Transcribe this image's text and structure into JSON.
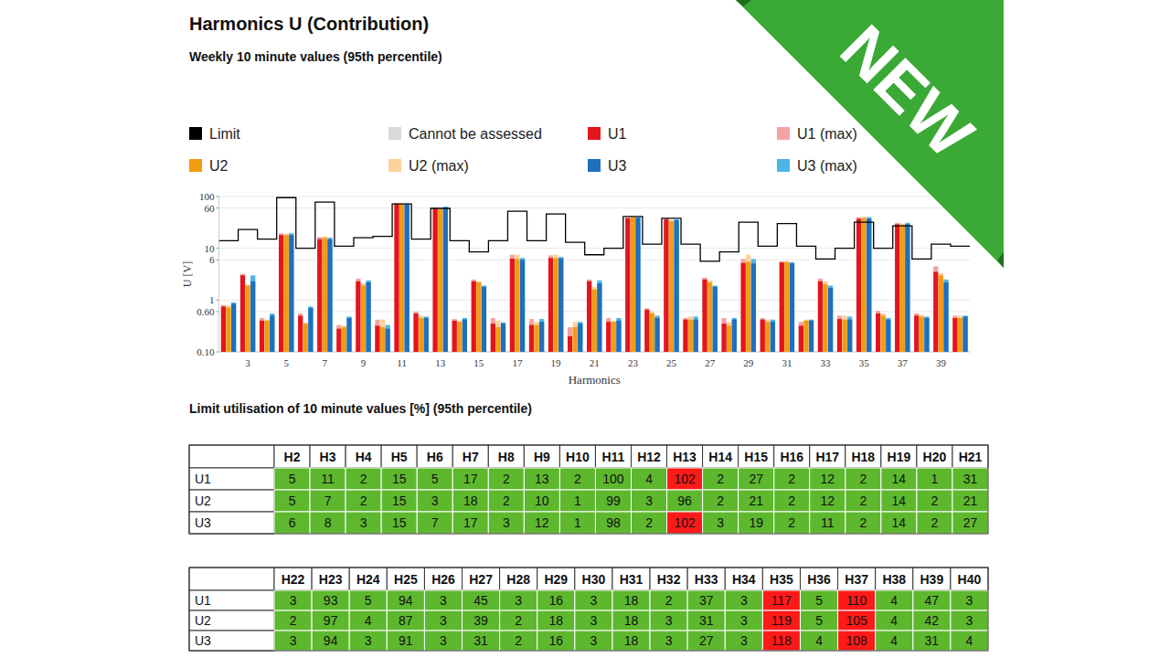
{
  "chart_data": {
    "type": "bar",
    "title": "Harmonics U (Contribution)",
    "subtitle": "Weekly 10 minute values (95th percentile)",
    "x_label": "Harmonics",
    "y_label": "U [V]",
    "categories": [
      null,
      "3",
      null,
      "5",
      null,
      "7",
      null,
      "9",
      null,
      "11",
      null,
      "13",
      null,
      "15",
      null,
      "17",
      null,
      "19",
      null,
      "21",
      null,
      "23",
      null,
      "25",
      null,
      "27",
      null,
      "29",
      null,
      "31",
      null,
      "33",
      null,
      "35",
      null,
      "37",
      null,
      "39",
      null
    ],
    "log": "y",
    "grid": true,
    "legend": "top",
    "ylim": [
      0.1,
      100
    ],
    "yticks": [
      {
        "value": 0.1,
        "label": "0.10"
      },
      {
        "value": 0.6,
        "label": "0.60"
      },
      1,
      6,
      10,
      60,
      100
    ],
    "series": [
      {
        "name": "Limit",
        "type": "line",
        "line_style": "step",
        "color": "#000000",
        "values": [
          14,
          23,
          15,
          95,
          10,
          78,
          11,
          16,
          17,
          72,
          15,
          59,
          14,
          8.5,
          14,
          52,
          14,
          46,
          13,
          7.5,
          10,
          41,
          12,
          38,
          12,
          5.6,
          8.5,
          32,
          11,
          30,
          11,
          6.2,
          10,
          32,
          10,
          27,
          6.2,
          12,
          11
        ]
      },
      {
        "name": "Cannot be assessed",
        "type": "bar",
        "color": "#d9d9d9",
        "values": [
          null,
          null,
          null,
          null,
          null,
          null,
          null,
          null,
          null,
          null,
          null,
          null,
          null,
          null,
          null,
          null,
          null,
          null,
          null,
          null,
          null,
          null,
          null,
          null,
          null,
          null,
          null,
          null,
          null,
          null,
          null,
          null,
          null,
          null,
          null,
          null,
          null,
          null,
          null
        ]
      },
      {
        "name": "U1",
        "type": "bar",
        "color": "#e3151c",
        "values": [
          0.75,
          3.0,
          0.4,
          18,
          0.5,
          15,
          0.28,
          2.3,
          0.32,
          72,
          0.55,
          58,
          0.4,
          2.3,
          0.35,
          6.3,
          0.33,
          6.5,
          0.2,
          2.3,
          0.38,
          38,
          0.65,
          36,
          0.42,
          2.5,
          0.35,
          5.2,
          0.42,
          5.3,
          0.32,
          2.3,
          0.43,
          37,
          0.55,
          29,
          0.5,
          3.5,
          0.45
        ]
      },
      {
        "name": "U1 (max)",
        "type": "bar",
        "color": "#f4a3a3",
        "values": [
          0.8,
          3.2,
          0.45,
          19.5,
          0.55,
          16.5,
          0.33,
          2.6,
          0.42,
          74,
          0.6,
          62,
          0.43,
          2.5,
          0.45,
          7.5,
          0.43,
          7.3,
          0.3,
          2.5,
          0.45,
          40,
          0.7,
          38,
          0.45,
          2.7,
          0.45,
          6.2,
          0.45,
          5.6,
          0.38,
          2.6,
          0.5,
          40,
          0.62,
          31,
          0.55,
          4.5,
          0.5
        ]
      },
      {
        "name": "U2",
        "type": "bar",
        "color": "#f39c12",
        "values": [
          0.72,
          1.9,
          0.4,
          18,
          0.35,
          16,
          0.3,
          1.9,
          0.3,
          71,
          0.45,
          56,
          0.38,
          2.2,
          0.3,
          6.2,
          0.33,
          6.4,
          0.3,
          1.6,
          0.38,
          40,
          0.55,
          33,
          0.42,
          2.2,
          0.32,
          5.5,
          0.38,
          5.4,
          0.4,
          2.0,
          0.42,
          38,
          0.5,
          28,
          0.48,
          3.0,
          0.45
        ]
      },
      {
        "name": "U2 (max)",
        "type": "bar",
        "color": "#fcd29a",
        "values": [
          0.8,
          2.0,
          0.42,
          19,
          0.37,
          17,
          0.32,
          2.1,
          0.42,
          74,
          0.5,
          60,
          0.4,
          2.3,
          0.4,
          7.5,
          0.38,
          7.5,
          0.38,
          1.8,
          0.4,
          41,
          0.6,
          35,
          0.48,
          2.4,
          0.38,
          7.5,
          0.42,
          5.7,
          0.42,
          2.3,
          0.5,
          41,
          0.55,
          30,
          0.52,
          3.3,
          0.5
        ]
      },
      {
        "name": "U3",
        "type": "bar",
        "color": "#1f6fbf",
        "values": [
          0.85,
          2.3,
          0.5,
          18,
          0.7,
          15,
          0.45,
          2.2,
          0.28,
          70,
          0.45,
          60,
          0.42,
          1.8,
          0.35,
          6.0,
          0.38,
          6.4,
          0.35,
          2.1,
          0.4,
          39,
          0.45,
          35,
          0.42,
          1.8,
          0.42,
          5.1,
          0.38,
          5.1,
          0.4,
          1.7,
          0.42,
          37,
          0.42,
          29,
          0.45,
          2.2,
          0.48
        ]
      },
      {
        "name": "U3 (max)",
        "type": "bar",
        "color": "#4cb5e6",
        "values": [
          0.9,
          3.0,
          0.55,
          19.5,
          0.75,
          16,
          0.48,
          2.4,
          0.33,
          73,
          0.48,
          64,
          0.45,
          1.9,
          0.37,
          6.5,
          0.43,
          6.8,
          0.38,
          2.4,
          0.45,
          40,
          0.5,
          36,
          0.48,
          1.9,
          0.45,
          6.2,
          0.42,
          5.4,
          0.42,
          1.9,
          0.48,
          40,
          0.45,
          31,
          0.48,
          2.5,
          0.5
        ]
      }
    ]
  },
  "badge": {
    "text": "NEW",
    "color": "#3aa935"
  },
  "table": {
    "title": "Limit utilisation of 10 minute values [%] (95th percentile)",
    "blocks": [
      {
        "columns": [
          "H2",
          "H3",
          "H4",
          "H5",
          "H6",
          "H7",
          "H8",
          "H9",
          "H10",
          "H11",
          "H12",
          "H13",
          "H14",
          "H15",
          "H16",
          "H17",
          "H18",
          "H19",
          "H20",
          "H21"
        ],
        "rows": [
          {
            "label": "U1",
            "values": [
              5,
              11,
              2,
              15,
              5,
              17,
              2,
              13,
              2,
              100,
              4,
              102,
              2,
              27,
              2,
              12,
              2,
              14,
              1,
              31
            ],
            "colors": [
              "#5db82e",
              "#5db82e",
              "#5db82e",
              "#5db82e",
              "#5db82e",
              "#5db82e",
              "#5db82e",
              "#5db82e",
              "#5db82e",
              "#5db82e",
              "#5db82e",
              "#ff1a1a",
              "#5db82e",
              "#5db82e",
              "#5db82e",
              "#5db82e",
              "#5db82e",
              "#5db82e",
              "#5db82e",
              "#5db82e"
            ]
          },
          {
            "label": "U2",
            "values": [
              5,
              7,
              2,
              15,
              3,
              18,
              2,
              10,
              1,
              99,
              3,
              96,
              2,
              21,
              2,
              12,
              2,
              14,
              2,
              21
            ],
            "colors": [
              "#5db82e",
              "#5db82e",
              "#5db82e",
              "#5db82e",
              "#5db82e",
              "#5db82e",
              "#5db82e",
              "#5db82e",
              "#5db82e",
              "#5db82e",
              "#5db82e",
              "#5db82e",
              "#5db82e",
              "#5db82e",
              "#5db82e",
              "#5db82e",
              "#5db82e",
              "#5db82e",
              "#5db82e",
              "#5db82e"
            ]
          },
          {
            "label": "U3",
            "values": [
              6,
              8,
              3,
              15,
              7,
              17,
              3,
              12,
              1,
              98,
              2,
              102,
              3,
              19,
              2,
              11,
              2,
              14,
              2,
              27
            ],
            "colors": [
              "#5db82e",
              "#5db82e",
              "#5db82e",
              "#5db82e",
              "#5db82e",
              "#5db82e",
              "#5db82e",
              "#5db82e",
              "#5db82e",
              "#5db82e",
              "#5db82e",
              "#ff1a1a",
              "#5db82e",
              "#5db82e",
              "#5db82e",
              "#5db82e",
              "#5db82e",
              "#5db82e",
              "#5db82e",
              "#5db82e"
            ]
          }
        ]
      },
      {
        "columns": [
          "H22",
          "H23",
          "H24",
          "H25",
          "H26",
          "H27",
          "H28",
          "H29",
          "H30",
          "H31",
          "H32",
          "H33",
          "H34",
          "H35",
          "H36",
          "H37",
          "H38",
          "H39",
          "H40"
        ],
        "rows": [
          {
            "label": "U1",
            "values": [
              3,
              93,
              5,
              94,
              3,
              45,
              3,
              16,
              3,
              18,
              2,
              37,
              3,
              117,
              5,
              110,
              4,
              47,
              3
            ],
            "colors": [
              "#5db82e",
              "#5db82e",
              "#5db82e",
              "#5db82e",
              "#5db82e",
              "#5db82e",
              "#5db82e",
              "#5db82e",
              "#5db82e",
              "#5db82e",
              "#5db82e",
              "#5db82e",
              "#5db82e",
              "#ff1a1a",
              "#5db82e",
              "#ff1a1a",
              "#5db82e",
              "#5db82e",
              "#5db82e"
            ]
          },
          {
            "label": "U2",
            "values": [
              2,
              97,
              4,
              87,
              3,
              39,
              2,
              18,
              3,
              18,
              3,
              31,
              3,
              119,
              5,
              105,
              4,
              42,
              3
            ],
            "colors": [
              "#5db82e",
              "#5db82e",
              "#5db82e",
              "#5db82e",
              "#5db82e",
              "#5db82e",
              "#5db82e",
              "#5db82e",
              "#5db82e",
              "#5db82e",
              "#5db82e",
              "#5db82e",
              "#5db82e",
              "#ff1a1a",
              "#5db82e",
              "#ff1a1a",
              "#5db82e",
              "#5db82e",
              "#5db82e"
            ]
          },
          {
            "label": "U3",
            "values": [
              3,
              94,
              3,
              91,
              3,
              31,
              2,
              16,
              3,
              18,
              3,
              27,
              3,
              118,
              4,
              108,
              4,
              31,
              4
            ],
            "colors": [
              "#5db82e",
              "#5db82e",
              "#5db82e",
              "#5db82e",
              "#5db82e",
              "#5db82e",
              "#5db82e",
              "#5db82e",
              "#5db82e",
              "#5db82e",
              "#5db82e",
              "#5db82e",
              "#5db82e",
              "#ff1a1a",
              "#5db82e",
              "#ff1a1a",
              "#5db82e",
              "#5db82e",
              "#5db82e"
            ]
          }
        ]
      }
    ]
  }
}
